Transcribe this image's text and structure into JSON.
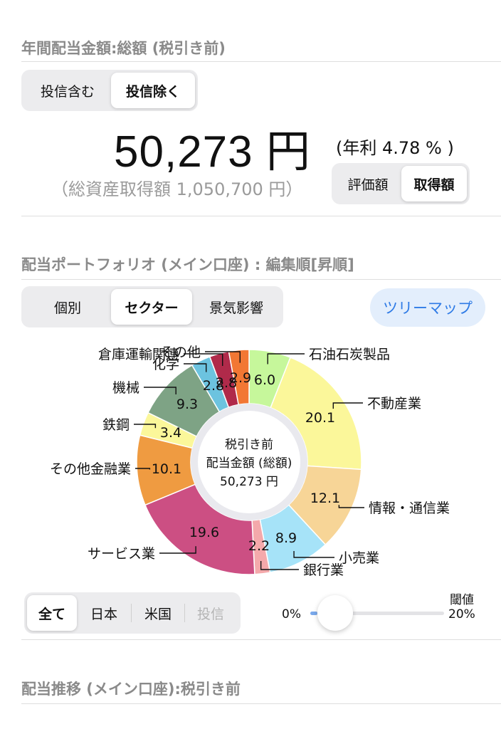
{
  "annual_dividend": {
    "title": "年間配当金額:総額 (税引き前)",
    "toggle": [
      "投信含む",
      "投信除く"
    ],
    "toggle_selected": 1,
    "amount": "50,273 円",
    "yield_text": "(年利 4.78 % )",
    "basis_text": "（総資産取得額 1,050,700 円）",
    "basis_toggle": [
      "評価額",
      "取得額"
    ],
    "basis_selected": 1
  },
  "portfolio": {
    "title": "配当ポートフォリオ (メイン口座) : 編集順[昇順]",
    "tabs": [
      "個別",
      "セクター",
      "景気影響"
    ],
    "tab_selected": 1,
    "treemap_button": "ツリーマップ",
    "center_lines": [
      "税引き前",
      "配当金額 (総額)",
      "50,273 円"
    ]
  },
  "chart_data": {
    "type": "pie",
    "donut": true,
    "slices": [
      {
        "label": "石油石炭製品",
        "value": 6.0,
        "value_text": "6.0",
        "color": "#c6f79b"
      },
      {
        "label": "不動産業",
        "value": 20.1,
        "value_text": "20.1",
        "color": "#fbf79a"
      },
      {
        "label": "情報・通信業",
        "value": 12.1,
        "value_text": "12.1",
        "color": "#f7d597"
      },
      {
        "label": "小売業",
        "value": 8.9,
        "value_text": "8.9",
        "color": "#a6e3f8"
      },
      {
        "label": "銀行業",
        "value": 2.2,
        "value_text": "2.2",
        "color": "#f4a9ab"
      },
      {
        "label": "サービス業",
        "value": 19.6,
        "value_text": "19.6",
        "color": "#cc4f83"
      },
      {
        "label": "その他金融業",
        "value": 10.1,
        "value_text": "10.1",
        "color": "#ef9b41"
      },
      {
        "label": "鉄鋼",
        "value": 3.4,
        "value_text": "3.4",
        "color": "#fbf79a"
      },
      {
        "label": "機械",
        "value": 9.3,
        "value_text": "9.3",
        "color": "#7ea385"
      },
      {
        "label": "化学",
        "value": 2.8,
        "value_text": "2.8",
        "color": "#6cc3df"
      },
      {
        "label": "倉庫運輸関連",
        "value": 2.8,
        "value_text": "2.8",
        "color": "#b02a4a"
      },
      {
        "label": "その他",
        "value": 2.9,
        "value_text": "2.9",
        "color": "#f27733"
      }
    ]
  },
  "filters": {
    "region_tabs": [
      "全て",
      "日本",
      "米国",
      "投信"
    ],
    "region_selected": 0,
    "region_disabled": [
      3
    ],
    "threshold_label": "閾値",
    "slider_min": "0%",
    "slider_max": "20%",
    "slider_value": 0
  },
  "history": {
    "title": "配当推移 (メイン口座):税引き前"
  }
}
